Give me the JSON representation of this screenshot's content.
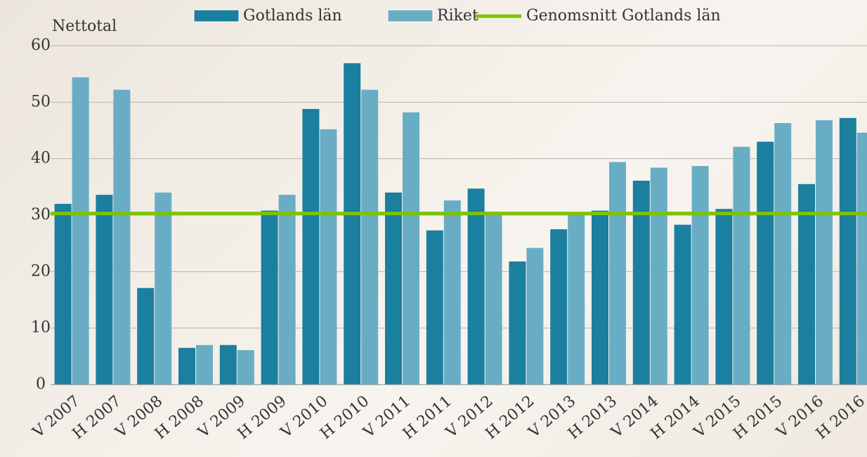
{
  "chart_data": {
    "type": "bar",
    "ylabel": "Nettotal",
    "categories": [
      "V 2007",
      "H 2007",
      "V 2008",
      "H 2008",
      "V 2009",
      "H 2009",
      "V 2010",
      "H 2010",
      "V 2011",
      "H 2011",
      "V 2012",
      "H 2012",
      "V 2013",
      "H 2013",
      "V 2014",
      "H 2014",
      "V 2015",
      "H 2015",
      "V 2016",
      "H 2016"
    ],
    "series": [
      {
        "name": "Gotlands län",
        "color": "#1b7f9f",
        "type": "bar",
        "values": [
          32.0,
          33.6,
          17.1,
          6.5,
          7.0,
          30.8,
          48.8,
          56.9,
          34.0,
          27.3,
          34.7,
          21.8,
          27.5,
          30.8,
          36.1,
          28.3,
          31.1,
          43.0,
          35.5,
          47.2
        ]
      },
      {
        "name": "Riket",
        "color": "#69adc5",
        "type": "bar",
        "values": [
          54.4,
          52.2,
          34.0,
          7.0,
          6.1,
          33.6,
          45.2,
          52.2,
          48.2,
          32.6,
          30.6,
          24.2,
          30.4,
          39.4,
          38.4,
          38.7,
          42.1,
          46.3,
          46.8,
          44.6
        ]
      },
      {
        "name": "Genomsnitt Gotlands län",
        "color": "#7dc400",
        "type": "line",
        "values": [
          30.3,
          30.3,
          30.3,
          30.3,
          30.3,
          30.3,
          30.3,
          30.3,
          30.3,
          30.3,
          30.3,
          30.3,
          30.3,
          30.3,
          30.3,
          30.3,
          30.3,
          30.3,
          30.3,
          30.3
        ]
      }
    ],
    "ylim": [
      0,
      60
    ],
    "yticks": [
      0,
      10,
      20,
      30,
      40,
      50,
      60
    ],
    "grid": true
  }
}
